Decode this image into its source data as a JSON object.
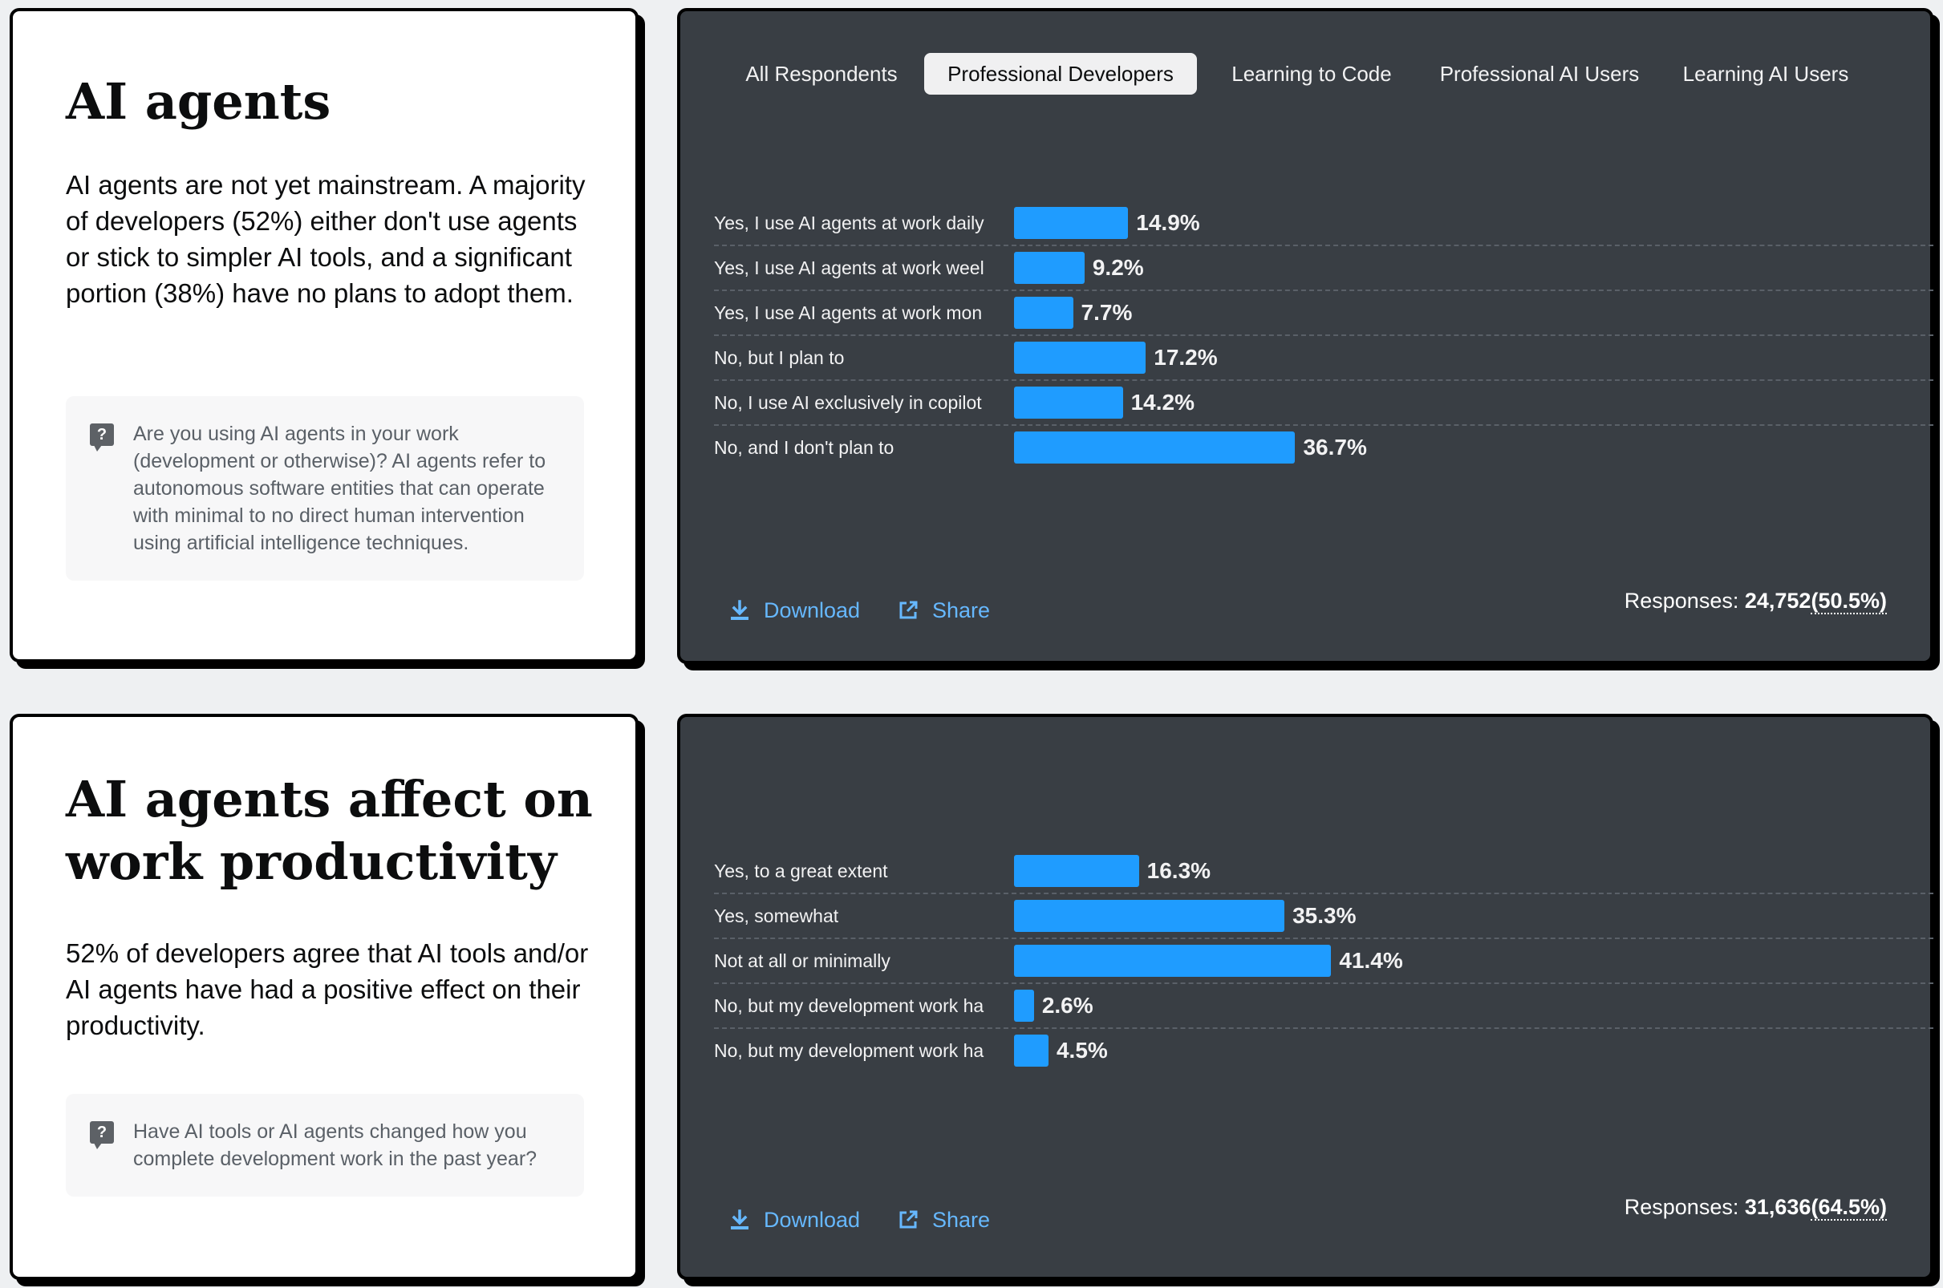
{
  "sections": [
    {
      "title": "AI agents",
      "description": "AI agents are not yet mainstream. A majority of developers (52%) either don't use agents or stick to simpler AI tools, and a significant portion (38%) have no plans to adopt them.",
      "question": "Are you using AI agents in your work (development or otherwise)? AI agents refer to autonomous software entities that can operate with minimal to no direct human intervention using artificial intelligence techniques.",
      "responses_label": "Responses:",
      "responses_count": "24,752",
      "responses_pct": "(50.5%)"
    },
    {
      "title": "AI agents affect on work productivity",
      "description": "52% of developers agree that AI tools and/or AI agents have had a positive effect on their productivity.",
      "question": "Have AI tools or AI agents changed how you complete development work in the past year?",
      "responses_label": "Responses:",
      "responses_count": "31,636",
      "responses_pct": "(64.5%)"
    }
  ],
  "tabs": [
    "All Respondents",
    "Professional Developers",
    "Learning to Code",
    "Professional AI Users",
    "Learning AI Users"
  ],
  "active_tab": "Professional Developers",
  "actions": {
    "download": "Download",
    "share": "Share"
  },
  "colors": {
    "bar": "#1f9cff",
    "chart_bg": "#393e44",
    "link": "#66b8ff"
  },
  "icons": {
    "question": "question-mark-icon",
    "download": "download-icon",
    "share": "share-icon"
  },
  "chart_data": [
    {
      "type": "bar",
      "orientation": "horizontal",
      "categories": [
        "Yes, I use AI agents at work daily",
        "Yes, I use AI agents at work weel",
        "Yes, I use AI agents at work mon",
        "No, but I plan to",
        "No, I use AI exclusively in copilot",
        "No, and I don't plan to"
      ],
      "values": [
        14.9,
        9.2,
        7.7,
        17.2,
        14.2,
        36.7
      ],
      "value_labels": [
        "14.9%",
        "9.2%",
        "7.7%",
        "17.2%",
        "14.2%",
        "36.7%"
      ],
      "unit": "%",
      "xlim": [
        0,
        100
      ],
      "grid": false
    },
    {
      "type": "bar",
      "orientation": "horizontal",
      "categories": [
        "Yes, to a great extent",
        "Yes, somewhat",
        "Not at all or minimally",
        "No, but my development work ha",
        "No, but my development work ha"
      ],
      "values": [
        16.3,
        35.3,
        41.4,
        2.6,
        4.5
      ],
      "value_labels": [
        "16.3%",
        "35.3%",
        "41.4%",
        "2.6%",
        "4.5%"
      ],
      "unit": "%",
      "xlim": [
        0,
        100
      ],
      "grid": false
    }
  ]
}
